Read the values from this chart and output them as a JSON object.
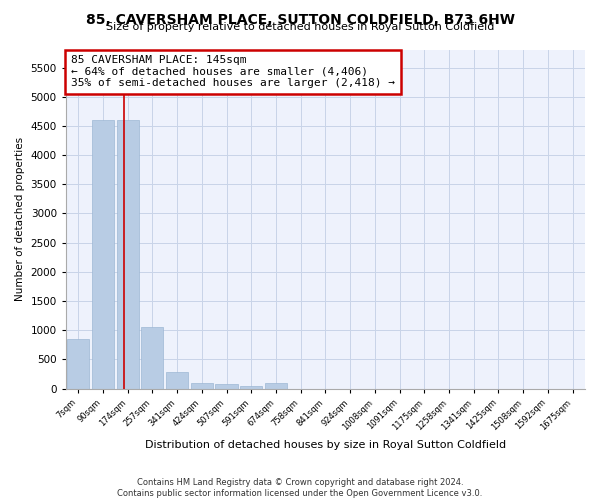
{
  "title": "85, CAVERSHAM PLACE, SUTTON COLDFIELD, B73 6HW",
  "subtitle": "Size of property relative to detached houses in Royal Sutton Coldfield",
  "xlabel": "Distribution of detached houses by size in Royal Sutton Coldfield",
  "ylabel": "Number of detached properties",
  "footer1": "Contains HM Land Registry data © Crown copyright and database right 2024.",
  "footer2": "Contains public sector information licensed under the Open Government Licence v3.0.",
  "annotation_title": "85 CAVERSHAM PLACE: 145sqm",
  "annotation_line1": "← 64% of detached houses are smaller (4,406)",
  "annotation_line2": "35% of semi-detached houses are larger (2,418) →",
  "categories": [
    "7sqm",
    "90sqm",
    "174sqm",
    "257sqm",
    "341sqm",
    "424sqm",
    "507sqm",
    "591sqm",
    "674sqm",
    "758sqm",
    "841sqm",
    "924sqm",
    "1008sqm",
    "1091sqm",
    "1175sqm",
    "1258sqm",
    "1341sqm",
    "1425sqm",
    "1508sqm",
    "1592sqm",
    "1675sqm"
  ],
  "values": [
    850,
    4600,
    4600,
    1050,
    285,
    90,
    80,
    50,
    90,
    0,
    0,
    0,
    0,
    0,
    0,
    0,
    0,
    0,
    0,
    0,
    0
  ],
  "bar_color": "#b8cce4",
  "bar_edge_color": "#9db8d4",
  "grid_color": "#c8d4e8",
  "background_color": "#eef2fc",
  "property_line_x": 1.85,
  "property_line_color": "#cc0000",
  "annotation_box_color": "#cc0000",
  "ylim": [
    0,
    5800
  ],
  "yticks": [
    0,
    500,
    1000,
    1500,
    2000,
    2500,
    3000,
    3500,
    4000,
    4500,
    5000,
    5500
  ],
  "bar_width": 0.9
}
